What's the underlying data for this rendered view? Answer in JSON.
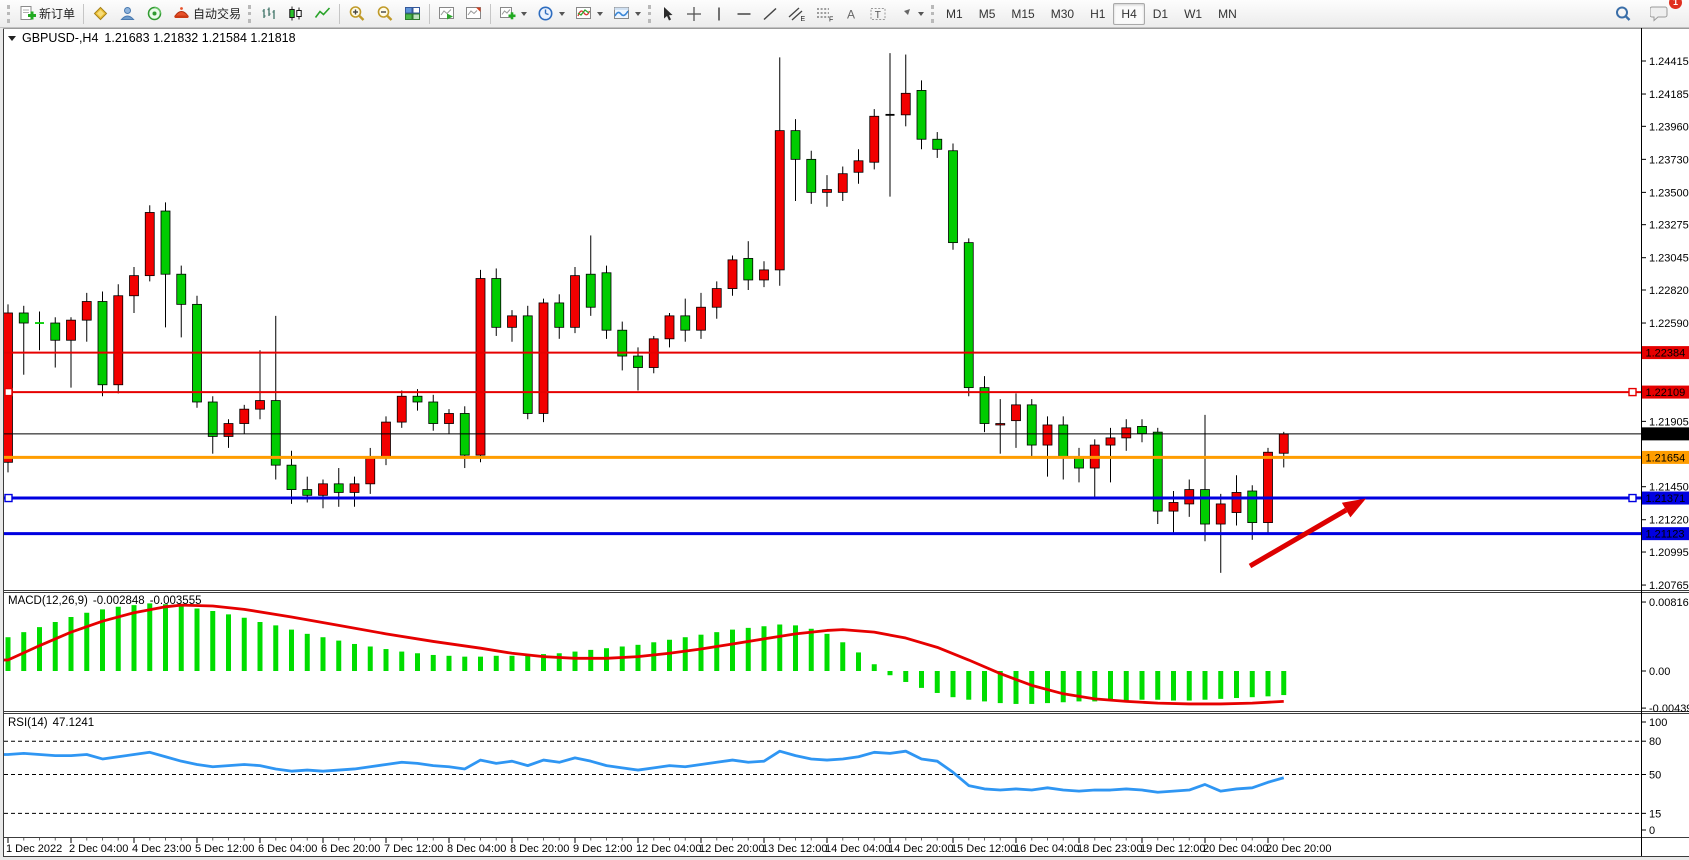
{
  "toolbar": {
    "new_order": "新订单",
    "autotrading": "自动交易",
    "timeframes": [
      {
        "label": "M1",
        "active": false
      },
      {
        "label": "M5",
        "active": false
      },
      {
        "label": "M15",
        "active": false
      },
      {
        "label": "M30",
        "active": false
      },
      {
        "label": "H1",
        "active": false
      },
      {
        "label": "H4",
        "active": true
      },
      {
        "label": "D1",
        "active": false
      },
      {
        "label": "W1",
        "active": false
      },
      {
        "label": "MN",
        "active": false
      }
    ],
    "notification_count": "1"
  },
  "icons": {
    "channel": "E",
    "fibonacci": "F",
    "text": "A",
    "text_label": "T"
  },
  "chart": {
    "symbol_title": "GBPUSD-,H4",
    "ohlc_line": "1.21683 1.21832 1.21584 1.21818"
  },
  "chart_data": {
    "type": "candlestick",
    "symbol": "GBPUSD-",
    "timeframe": "H4",
    "last_bar": {
      "open": "1.21683",
      "high": "1.21832",
      "low": "1.21584",
      "close": "1.21818"
    },
    "price_axis_labels": [
      "1.24415",
      "1.24185",
      "1.23960",
      "1.23730",
      "1.23500",
      "1.23275",
      "1.23045",
      "1.22820",
      "1.22590",
      "1.21905",
      "1.21450",
      "1.21220",
      "1.20995",
      "1.20765"
    ],
    "time_labels": [
      "1 Dec 2022",
      "2 Dec 04:00",
      "4 Dec 23:00",
      "5 Dec 12:00",
      "6 Dec 04:00",
      "6 Dec 20:00",
      "7 Dec 12:00",
      "8 Dec 04:00",
      "8 Dec 20:00",
      "9 Dec 12:00",
      "12 Dec 04:00",
      "12 Dec 20:00",
      "13 Dec 12:00",
      "14 Dec 04:00",
      "14 Dec 20:00",
      "15 Dec 12:00",
      "16 Dec 04:00",
      "18 Dec 23:00",
      "19 Dec 12:00",
      "20 Dec 04:00",
      "20 Dec 20:00"
    ],
    "time_label_step_bars": 4,
    "colors": {
      "up": "#f20000",
      "down": "#00cc00",
      "outline": "#000000",
      "macd_hist": "#00dd00",
      "macd_signal": "#e60000",
      "rsi_line": "#2f96f3"
    },
    "candles_ohlc": [
      [
        1.2162,
        1.2272,
        1.2155,
        1.2266
      ],
      [
        1.2266,
        1.2271,
        1.2223,
        1.2259
      ],
      [
        1.2259,
        1.2267,
        1.224,
        1.22585
      ],
      [
        1.2259,
        1.2263,
        1.2228,
        1.2247
      ],
      [
        1.2247,
        1.2263,
        1.2214,
        1.2261
      ],
      [
        1.2261,
        1.228,
        1.2246,
        1.2274
      ],
      [
        1.2274,
        1.2281,
        1.2208,
        1.2216
      ],
      [
        1.2216,
        1.2286,
        1.221,
        1.2278
      ],
      [
        1.2278,
        1.2298,
        1.2266,
        1.2292
      ],
      [
        1.2292,
        1.2341,
        1.2288,
        1.2336
      ],
      [
        1.2337,
        1.2343,
        1.2256,
        1.2293
      ],
      [
        1.2293,
        1.2299,
        1.2249,
        1.2272
      ],
      [
        1.2272,
        1.2278,
        1.22,
        1.2204
      ],
      [
        1.2204,
        1.2208,
        1.2168,
        1.218
      ],
      [
        1.218,
        1.2192,
        1.2172,
        1.2189
      ],
      [
        1.2189,
        1.2202,
        1.2182,
        1.2199
      ],
      [
        1.2199,
        1.224,
        1.2192,
        1.2205
      ],
      [
        1.2205,
        1.2264,
        1.215,
        1.216
      ],
      [
        1.216,
        1.217,
        1.2133,
        1.2143
      ],
      [
        1.2143,
        1.2152,
        1.2134,
        1.2139
      ],
      [
        1.2139,
        1.215,
        1.213,
        1.2147
      ],
      [
        1.2147,
        1.2158,
        1.2131,
        1.2141
      ],
      [
        1.2141,
        1.2152,
        1.2131,
        1.2147
      ],
      [
        1.2147,
        1.2172,
        1.214,
        1.2166
      ],
      [
        1.2166,
        1.2194,
        1.216,
        1.219
      ],
      [
        1.219,
        1.2212,
        1.2186,
        1.2208
      ],
      [
        1.2208,
        1.2213,
        1.2198,
        1.2204
      ],
      [
        1.2204,
        1.2209,
        1.2184,
        1.2189
      ],
      [
        1.2189,
        1.2199,
        1.2182,
        1.2196
      ],
      [
        1.2196,
        1.2201,
        1.2158,
        1.2167
      ],
      [
        1.2167,
        1.2296,
        1.2162,
        1.229
      ],
      [
        1.229,
        1.2297,
        1.225,
        1.2256
      ],
      [
        1.2256,
        1.2268,
        1.2246,
        1.2264
      ],
      [
        1.2264,
        1.2271,
        1.2192,
        1.2196
      ],
      [
        1.2196,
        1.2276,
        1.219,
        1.2273
      ],
      [
        1.2273,
        1.2279,
        1.2248,
        1.2256
      ],
      [
        1.2256,
        1.2298,
        1.2252,
        1.2292
      ],
      [
        1.2293,
        1.232,
        1.2264,
        1.227
      ],
      [
        1.2294,
        1.2299,
        1.2248,
        1.2254
      ],
      [
        1.2254,
        1.226,
        1.2226,
        1.2236
      ],
      [
        1.2236,
        1.2242,
        1.2212,
        1.2228
      ],
      [
        1.2228,
        1.225,
        1.2224,
        1.2248
      ],
      [
        1.2248,
        1.2266,
        1.2242,
        1.2264
      ],
      [
        1.2264,
        1.2276,
        1.2246,
        1.2254
      ],
      [
        1.2254,
        1.228,
        1.2248,
        1.227
      ],
      [
        1.227,
        1.2288,
        1.2262,
        1.2283
      ],
      [
        1.2283,
        1.2306,
        1.2278,
        1.2303
      ],
      [
        1.2304,
        1.2316,
        1.2282,
        1.2289
      ],
      [
        1.2289,
        1.2302,
        1.2284,
        1.2296
      ],
      [
        1.2296,
        1.2444,
        1.2285,
        1.2393
      ],
      [
        1.2393,
        1.2401,
        1.2344,
        1.2373
      ],
      [
        1.2373,
        1.2379,
        1.2342,
        1.235
      ],
      [
        1.235,
        1.2362,
        1.234,
        1.2352
      ],
      [
        1.235,
        1.2368,
        1.2344,
        1.2363
      ],
      [
        1.2364,
        1.238,
        1.2356,
        1.2372
      ],
      [
        1.2371,
        1.2408,
        1.2366,
        1.2403
      ],
      [
        1.2404,
        1.2447,
        1.2347,
        1.2404
      ],
      [
        1.2404,
        1.2446,
        1.2396,
        1.2419
      ],
      [
        1.2421,
        1.2428,
        1.238,
        1.2387
      ],
      [
        1.2387,
        1.2392,
        1.2374,
        1.238
      ],
      [
        1.2379,
        1.2384,
        1.231,
        1.2315
      ],
      [
        1.2315,
        1.2318,
        1.2208,
        1.2214
      ],
      [
        1.2214,
        1.2222,
        1.2183,
        1.2189
      ],
      [
        1.2188,
        1.2206,
        1.2168,
        1.2189
      ],
      [
        1.2191,
        1.221,
        1.2172,
        1.2202
      ],
      [
        1.2202,
        1.2206,
        1.2166,
        1.2174
      ],
      [
        1.2174,
        1.2194,
        1.2152,
        1.2188
      ],
      [
        1.2188,
        1.2194,
        1.215,
        1.2166
      ],
      [
        1.2166,
        1.2172,
        1.2148,
        1.2158
      ],
      [
        1.2158,
        1.2178,
        1.2137,
        1.2174
      ],
      [
        1.2174,
        1.2186,
        1.2148,
        1.2179
      ],
      [
        1.2179,
        1.2192,
        1.217,
        1.2186
      ],
      [
        1.2187,
        1.2192,
        1.2176,
        1.2182
      ],
      [
        1.2183,
        1.2186,
        1.2119,
        1.2128
      ],
      [
        1.2128,
        1.2142,
        1.2112,
        1.2134
      ],
      [
        1.2133,
        1.215,
        1.2124,
        1.2143
      ],
      [
        1.2143,
        1.2195,
        1.2107,
        1.2119
      ],
      [
        1.2119,
        1.214,
        1.2085,
        1.2133
      ],
      [
        1.2127,
        1.2153,
        1.2118,
        1.2141
      ],
      [
        1.2142,
        1.2146,
        1.2108,
        1.212
      ],
      [
        1.212,
        1.2172,
        1.2112,
        1.2169
      ],
      [
        1.21683,
        1.21832,
        1.21584,
        1.21818
      ]
    ],
    "hlines": [
      {
        "price": 1.22384,
        "label": "1.22384",
        "color": "#e60000",
        "width": 2,
        "tag": true,
        "handles": false
      },
      {
        "price": 1.22109,
        "label": "1.22109",
        "color": "#e60000",
        "width": 2,
        "tag": true,
        "handles": true
      },
      {
        "price": 1.21654,
        "label": "1.21654",
        "color": "#ff9d00",
        "width": 3,
        "tag": true,
        "handles": false
      },
      {
        "price": 1.21371,
        "label": "1.21371",
        "color": "#0000e0",
        "width": 3,
        "tag": true,
        "handles": true
      },
      {
        "price": 1.21123,
        "label": "1.21123",
        "color": "#0000e0",
        "width": 3,
        "tag": true,
        "handles": false
      },
      {
        "price": 1.21818,
        "label": "1.21818",
        "color": "#000000",
        "width": 1,
        "tag": true,
        "handles": false
      }
    ],
    "trend_arrow": {
      "tail": [
        1250,
        566
      ],
      "head": [
        1366,
        498.5
      ],
      "color": "#dd0000"
    },
    "macd": {
      "label": "MACD(12,26,9)",
      "value_main": "-0.002848",
      "value_signal": "-0.003555",
      "axis_labels": [
        "0.008166",
        "0.00",
        "-0.004392"
      ],
      "histogram": [
        0.004,
        0.0046,
        0.0052,
        0.0058,
        0.0064,
        0.0069,
        0.0073,
        0.0076,
        0.0078,
        0.008,
        0.0079,
        0.0077,
        0.0074,
        0.0071,
        0.0067,
        0.0063,
        0.0058,
        0.0054,
        0.0049,
        0.0044,
        0.004,
        0.0036,
        0.0032,
        0.0029,
        0.0026,
        0.0023,
        0.0021,
        0.0019,
        0.0018,
        0.0017,
        0.0017,
        0.0018,
        0.0018,
        0.0019,
        0.002,
        0.0021,
        0.0023,
        0.0025,
        0.0027,
        0.0029,
        0.0031,
        0.0034,
        0.0037,
        0.004,
        0.0043,
        0.0046,
        0.0049,
        0.0051,
        0.0053,
        0.0055,
        0.0054,
        0.005,
        0.0044,
        0.0034,
        0.0022,
        0.0008,
        -0.0005,
        -0.0013,
        -0.002,
        -0.0026,
        -0.0031,
        -0.0034,
        -0.0036,
        -0.0038,
        -0.0039,
        -0.0039,
        -0.0038,
        -0.0037,
        -0.0036,
        -0.0036,
        -0.0035,
        -0.0035,
        -0.0034,
        -0.0034,
        -0.0035,
        -0.0035,
        -0.0034,
        -0.0033,
        -0.0032,
        -0.0031,
        -0.003,
        -0.00285
      ],
      "signal_points": [
        [
          0,
          0.0013
        ],
        [
          2,
          0.003
        ],
        [
          4,
          0.0046
        ],
        [
          6,
          0.0059
        ],
        [
          8,
          0.0069
        ],
        [
          10,
          0.0076
        ],
        [
          11,
          0.0078
        ],
        [
          13,
          0.0077
        ],
        [
          15,
          0.0073
        ],
        [
          18,
          0.0064
        ],
        [
          21,
          0.0054
        ],
        [
          24,
          0.0044
        ],
        [
          27,
          0.0035
        ],
        [
          30,
          0.0027
        ],
        [
          32,
          0.0021
        ],
        [
          34,
          0.0017
        ],
        [
          36,
          0.0015
        ],
        [
          38,
          0.0015
        ],
        [
          40,
          0.0017
        ],
        [
          42,
          0.0021
        ],
        [
          44,
          0.0026
        ],
        [
          46,
          0.0032
        ],
        [
          48,
          0.0038
        ],
        [
          50,
          0.0044
        ],
        [
          52,
          0.0048
        ],
        [
          53,
          0.0049
        ],
        [
          55,
          0.0046
        ],
        [
          57,
          0.0039
        ],
        [
          59,
          0.0028
        ],
        [
          61,
          0.0013
        ],
        [
          63,
          -0.0003
        ],
        [
          65,
          -0.0017
        ],
        [
          67,
          -0.0027
        ],
        [
          69,
          -0.0033
        ],
        [
          71,
          -0.0036
        ],
        [
          73,
          -0.0038
        ],
        [
          75,
          -0.0039
        ],
        [
          77,
          -0.0039
        ],
        [
          79,
          -0.0038
        ],
        [
          81,
          -0.0036
        ]
      ]
    },
    "rsi": {
      "label": "RSI(14)",
      "value": "47.1241",
      "axis_labels": [
        "100",
        "80",
        "50",
        "15",
        "0"
      ],
      "levels": [
        80,
        50,
        15
      ],
      "series": [
        68,
        69,
        68,
        67,
        67,
        68,
        64,
        66,
        68,
        70,
        66,
        62,
        59,
        57,
        58,
        59,
        58,
        55,
        53,
        54,
        53,
        54,
        55,
        57,
        59,
        61,
        60,
        58,
        57,
        55,
        63,
        60,
        62,
        58,
        63,
        61,
        65,
        62,
        58,
        56,
        54,
        56,
        58,
        57,
        59,
        61,
        63,
        61,
        62,
        71,
        67,
        64,
        63,
        64,
        66,
        70,
        69,
        71,
        64,
        62,
        52,
        40,
        37,
        36,
        37,
        36,
        38,
        36,
        35,
        36,
        36,
        37,
        36,
        34,
        35,
        36,
        41,
        35,
        37,
        38,
        43,
        47.1
      ]
    }
  }
}
